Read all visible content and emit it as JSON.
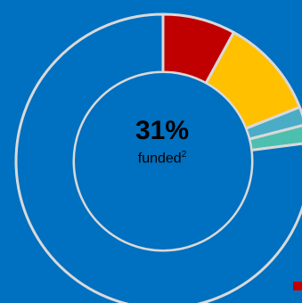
{
  "chart_data": {
    "type": "pie",
    "title": "",
    "slices": [
      {
        "value": 8,
        "color": "#C00000"
      },
      {
        "value": 11,
        "color": "#FFC000"
      },
      {
        "value": 2,
        "color": "#4BACC6"
      },
      {
        "value": 2,
        "color": "#4DBFAE"
      },
      {
        "value": 77,
        "color": "#0070C0"
      }
    ],
    "center_value": "31%",
    "center_caption": "funded",
    "center_caption_note": "2"
  },
  "legend": {
    "visible_chip_color": "#C00000"
  },
  "colors": {
    "background": "#0070C0",
    "ring_outline": "#D9D9D9"
  }
}
